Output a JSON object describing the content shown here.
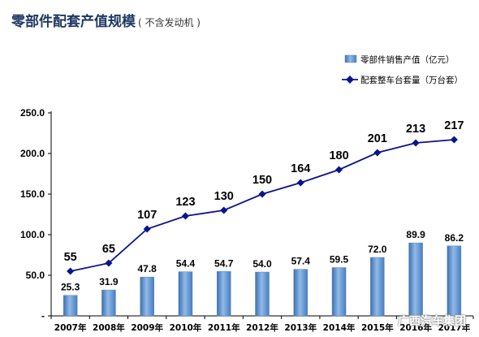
{
  "header": {
    "title": "零部件配套产值规模",
    "subtitle": "( 不含发动机 )"
  },
  "watermark": "广西汽车集团",
  "chart_data": {
    "type": "bar",
    "title": "零部件配套产值规模",
    "categories": [
      "2007年",
      "2008年",
      "2009年",
      "2010年",
      "2011年",
      "2012年",
      "2013年",
      "2014年",
      "2015年",
      "2016年",
      "2017年"
    ],
    "y_ticks": [
      "-",
      "50.0",
      "100.0",
      "150.0",
      "200.0",
      "250.0"
    ],
    "ylim": [
      0,
      250
    ],
    "legend_position": "top-right",
    "grid": false,
    "series": [
      {
        "name": "零部件销售产值（亿元）",
        "type": "bar",
        "values": [
          25.3,
          31.9,
          47.8,
          54.4,
          54.7,
          54.0,
          57.4,
          59.5,
          72.0,
          89.9,
          86.2
        ],
        "labels": [
          "25.3",
          "31.9",
          "47.8",
          "54.4",
          "54.7",
          "54.0",
          "57.4",
          "59.5",
          "72.0",
          "89.9",
          "86.2"
        ],
        "color": "#6f9fd8"
      },
      {
        "name": "配套整车台套量（万台套）",
        "type": "line",
        "values": [
          55,
          65,
          107,
          123,
          130,
          150,
          164,
          180,
          201,
          213,
          217
        ],
        "labels": [
          "55",
          "65",
          "107",
          "123",
          "130",
          "150",
          "164",
          "180",
          "201",
          "213",
          "217"
        ],
        "color": "#0b148c"
      }
    ]
  }
}
